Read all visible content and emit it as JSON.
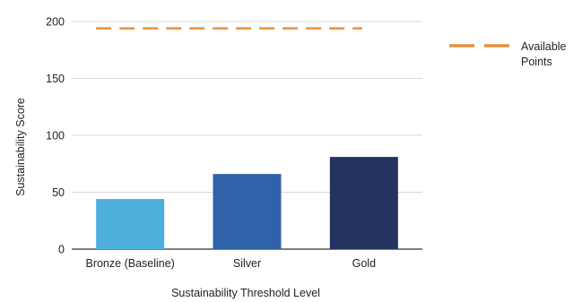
{
  "chart_data": {
    "type": "bar",
    "title": "",
    "xlabel": "Sustainability Threshold Level",
    "ylabel": "Sustainability Score",
    "categories": [
      "Bronze (Baseline)",
      "Silver",
      "Gold"
    ],
    "values": [
      44,
      66,
      81
    ],
    "bar_colors": [
      "#4fafdc",
      "#2f62a8",
      "#24335f"
    ],
    "reference_line": {
      "name": "Available Points",
      "value": 194,
      "color": "#e8913f",
      "style": "dashed"
    },
    "ylim": [
      0,
      200
    ],
    "yticks": [
      0,
      50,
      100,
      150,
      200
    ],
    "grid": true,
    "legend": {
      "placement": "right",
      "entries": [
        "Available",
        "Points"
      ]
    }
  }
}
